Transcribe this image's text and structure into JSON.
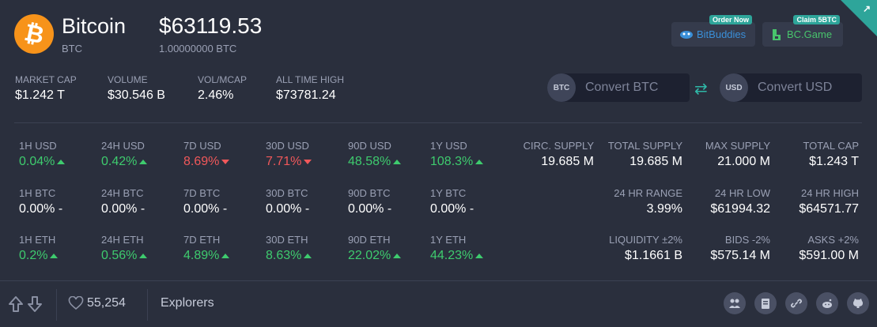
{
  "coin": {
    "name": "Bitcoin",
    "symbol": "BTC",
    "logo_glyph": "₿",
    "logo_color": "#f7931a"
  },
  "price": {
    "usd": "$63119.53",
    "btc": "1.00000000 BTC"
  },
  "partners": [
    {
      "label": "BitBuddies",
      "badge": "Order Now",
      "icon": "bitbuddies-logo-icon",
      "color": "#3a8fd8"
    },
    {
      "label": "BC.Game",
      "badge": "Claim 5BTC",
      "icon": "bcgame-logo-icon",
      "color": "#48c46c"
    }
  ],
  "corner_icon": "arrow-up-right-icon",
  "headline_stats": [
    {
      "label": "MARKET CAP",
      "value": "$1.242 T"
    },
    {
      "label": "VOLUME",
      "value": "$30.546 B"
    },
    {
      "label": "VOL/MCAP",
      "value": "2.46%"
    },
    {
      "label": "ALL TIME HIGH",
      "value": "$73781.24"
    }
  ],
  "converter": {
    "btc": {
      "tag": "BTC",
      "placeholder": "Convert BTC"
    },
    "usd": {
      "tag": "USD",
      "placeholder": "Convert USD"
    },
    "swap_icon": "swap-arrows-icon"
  },
  "changes": {
    "usd": [
      {
        "label": "1H USD",
        "value": "0.04%",
        "dir": "up"
      },
      {
        "label": "24H USD",
        "value": "0.42%",
        "dir": "up"
      },
      {
        "label": "7D USD",
        "value": "8.69%",
        "dir": "down"
      },
      {
        "label": "30D USD",
        "value": "7.71%",
        "dir": "down"
      },
      {
        "label": "90D USD",
        "value": "48.58%",
        "dir": "up"
      },
      {
        "label": "1Y USD",
        "value": "108.3%",
        "dir": "up"
      }
    ],
    "btc": [
      {
        "label": "1H BTC",
        "value": "0.00% -"
      },
      {
        "label": "24H BTC",
        "value": "0.00% -"
      },
      {
        "label": "7D BTC",
        "value": "0.00% -"
      },
      {
        "label": "30D BTC",
        "value": "0.00% -"
      },
      {
        "label": "90D BTC",
        "value": "0.00% -"
      },
      {
        "label": "1Y BTC",
        "value": "0.00% -"
      }
    ],
    "eth": [
      {
        "label": "1H ETH",
        "value": "0.2%",
        "dir": "up"
      },
      {
        "label": "24H ETH",
        "value": "0.56%",
        "dir": "up"
      },
      {
        "label": "7D ETH",
        "value": "4.89%",
        "dir": "up"
      },
      {
        "label": "30D ETH",
        "value": "8.63%",
        "dir": "up"
      },
      {
        "label": "90D ETH",
        "value": "22.02%",
        "dir": "up"
      },
      {
        "label": "1Y ETH",
        "value": "44.23%",
        "dir": "up"
      }
    ]
  },
  "right_stats": {
    "row1": [
      {
        "label": "CIRC. SUPPLY",
        "value": "19.685 M"
      },
      {
        "label": "TOTAL SUPPLY",
        "value": "19.685 M"
      },
      {
        "label": "MAX SUPPLY",
        "value": "21.000 M"
      },
      {
        "label": "TOTAL CAP",
        "value": "$1.243 T"
      }
    ],
    "row2": [
      {
        "label": "24 HR RANGE",
        "value": "3.99%"
      },
      {
        "label": "24 HR LOW",
        "value": "$61994.32"
      },
      {
        "label": "24 HR HIGH",
        "value": "$64571.77"
      }
    ],
    "row3": [
      {
        "label": "LIQUIDITY ±2%",
        "value": "$1.1661 B"
      },
      {
        "label": "BIDS -2%",
        "value": "$575.14 M"
      },
      {
        "label": "ASKS +2%",
        "value": "$591.00 M"
      }
    ]
  },
  "footer": {
    "likes": "55,254",
    "explorers_label": "Explorers",
    "social_icons": [
      "community-icon",
      "whitepaper-icon",
      "link-icon",
      "reddit-icon",
      "github-icon"
    ]
  },
  "colors": {
    "background": "#2a2f3d",
    "up": "#3ecb6e",
    "down": "#f1585a",
    "accent": "#2ea59a"
  }
}
